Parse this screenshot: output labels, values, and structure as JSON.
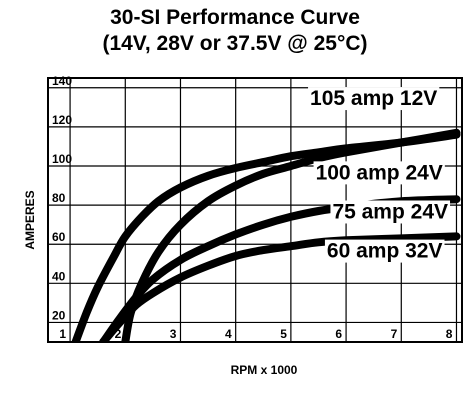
{
  "chart_data": {
    "type": "line",
    "title": "30-SI Performance Curve",
    "subtitle": "(14V, 28V or 37.5V @ 25°C)",
    "xlabel": "RPM x 1000",
    "ylabel": "AMPERES",
    "xlim": [
      0.6,
      8.1
    ],
    "ylim": [
      10,
      145
    ],
    "xticks": [
      "1",
      "2",
      "3",
      "4",
      "5",
      "6",
      "7",
      "8"
    ],
    "yticks": [
      "20",
      "40",
      "60",
      "80",
      "100",
      "120",
      "140"
    ],
    "grid": true,
    "series": [
      {
        "name": "105 amp 12V",
        "x": [
          1.1,
          1.3,
          1.5,
          1.8,
          2.0,
          2.3,
          2.6,
          3.0,
          3.5,
          4.0,
          4.5,
          5.0,
          5.5,
          6.0,
          7.0,
          8.0
        ],
        "y": [
          10,
          25,
          38,
          54,
          64,
          74,
          82,
          89,
          95,
          99,
          102,
          105,
          107,
          109,
          112,
          116
        ]
      },
      {
        "name": "100 amp 24V",
        "x": [
          2.0,
          2.1,
          2.3,
          2.6,
          3.0,
          3.5,
          4.0,
          4.5,
          5.0,
          5.5,
          6.0,
          7.0,
          8.0
        ],
        "y": [
          10,
          25,
          40,
          56,
          70,
          82,
          90,
          96,
          100,
          104,
          107,
          112,
          117
        ]
      },
      {
        "name": "75 amp 24V",
        "x": [
          1.6,
          1.9,
          2.2,
          2.5,
          3.0,
          3.5,
          4.0,
          4.5,
          5.0,
          5.5,
          6.0,
          7.0,
          8.0
        ],
        "y": [
          10,
          22,
          33,
          42,
          52,
          59,
          65,
          70,
          74,
          77,
          79,
          82,
          83
        ]
      },
      {
        "name": "60 amp 32V",
        "x": [
          1.6,
          1.9,
          2.2,
          2.5,
          3.0,
          3.5,
          4.0,
          4.5,
          5.0,
          5.5,
          6.0,
          7.0,
          8.0
        ],
        "y": [
          10,
          20,
          29,
          35,
          43,
          49,
          54,
          57,
          59,
          61,
          62,
          63,
          64
        ]
      }
    ],
    "annotations": [
      {
        "text": "105 amp 12V",
        "x": 6.5,
        "y": 134
      },
      {
        "text": "100 amp 24V",
        "x": 6.6,
        "y": 96
      },
      {
        "text": "75 amp 24V",
        "x": 6.8,
        "y": 76
      },
      {
        "text": "60 amp 32V",
        "x": 6.7,
        "y": 56
      }
    ]
  }
}
